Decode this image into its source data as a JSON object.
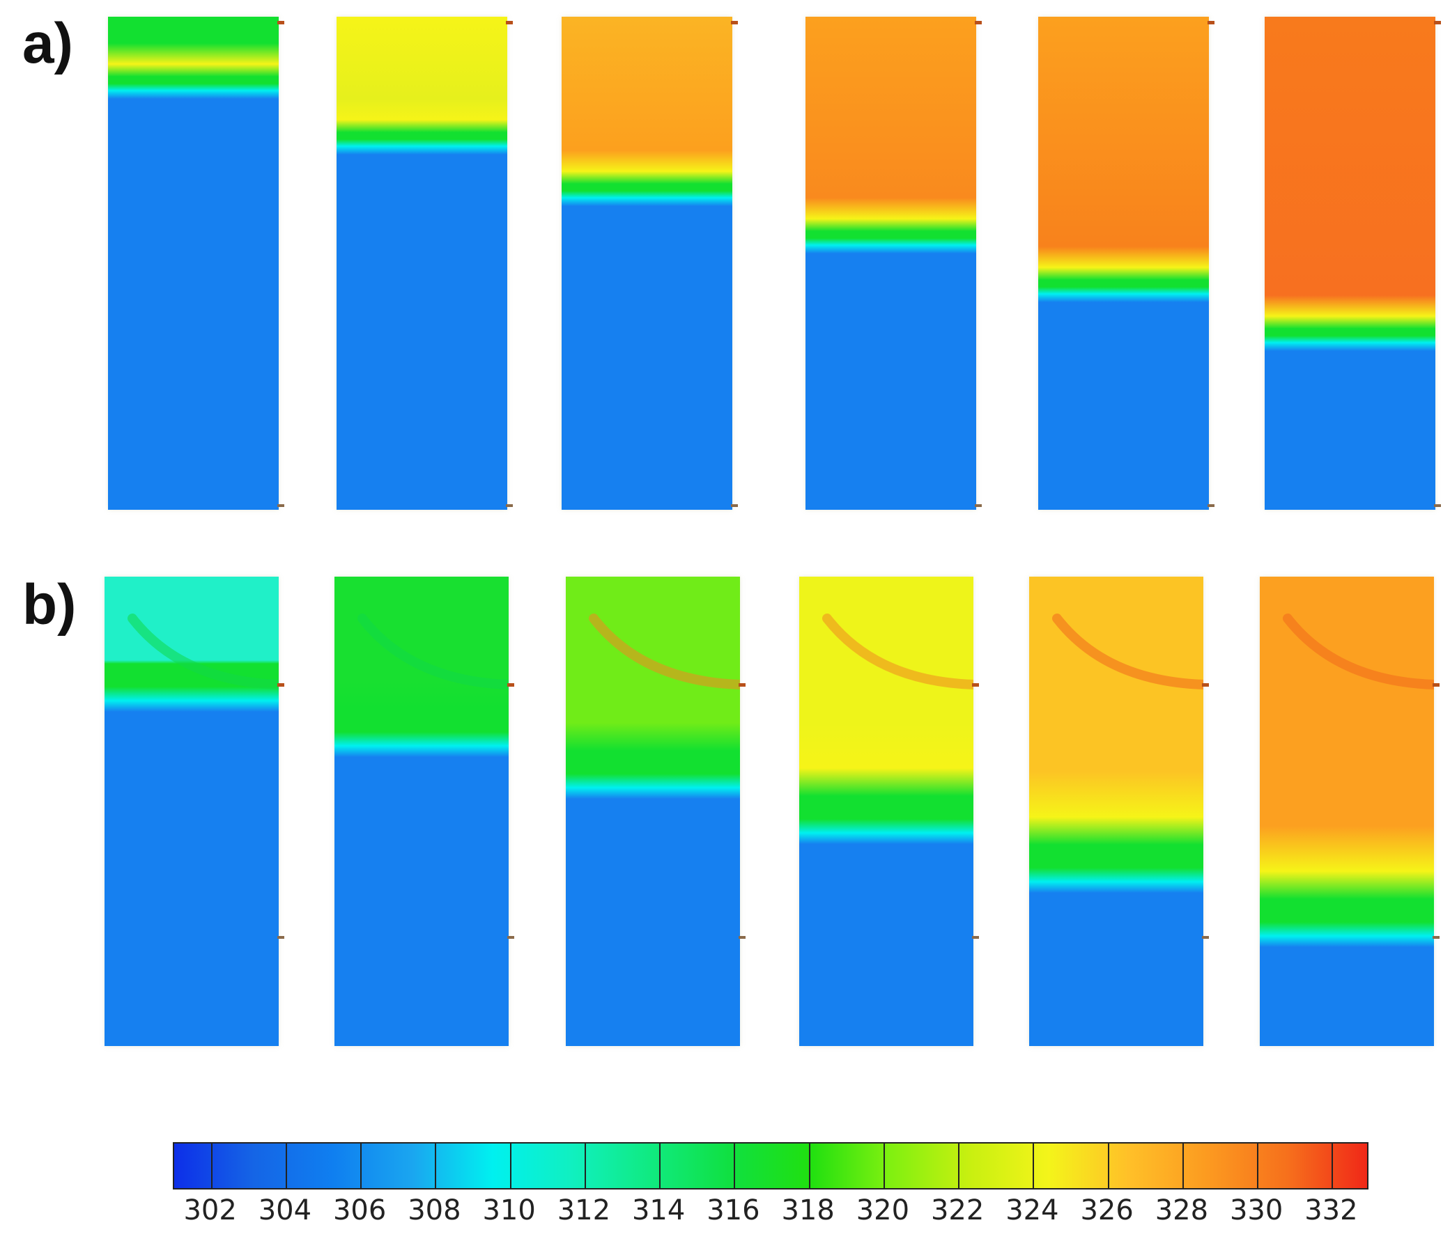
{
  "figure": {
    "panels": [
      {
        "id": "a",
        "label": "a)",
        "frames": 6
      },
      {
        "id": "b",
        "label": "b)",
        "frames": 6
      }
    ],
    "colorbar": {
      "ticks": [
        "302",
        "304",
        "306",
        "308",
        "310",
        "312",
        "314",
        "316",
        "318",
        "320",
        "322",
        "324",
        "326",
        "328",
        "330",
        "332"
      ],
      "range": [
        301,
        333
      ],
      "colors": [
        "#0d2fe8",
        "#1565e6",
        "#0f7ff0",
        "#1aa6f0",
        "#00f0f0",
        "#10f0c0",
        "#10ea80",
        "#10e040",
        "#20e010",
        "#80f010",
        "#c8f010",
        "#f4f41a",
        "#ffc028",
        "#fc9a20",
        "#f6701c",
        "#f02818"
      ]
    },
    "colormap": {
      "base_blue": "#1680f0",
      "cyan": "#00f0f0",
      "green": "#12e030",
      "yellow": "#f6f418",
      "orange": "#fca01e",
      "red_orange": "#f87a1c"
    }
  }
}
